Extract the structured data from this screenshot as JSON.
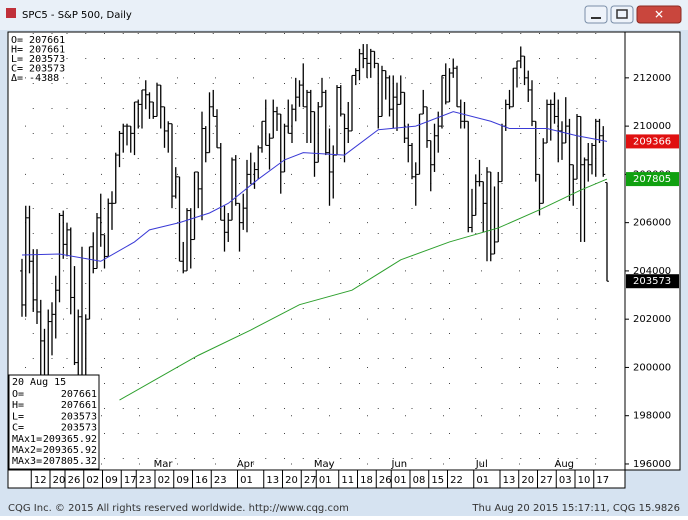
{
  "window": {
    "title": "SPC5 - S&P 500, Daily"
  },
  "footer": {
    "left": "CQG Inc. © 2015 All rights reserved worldwide. http://www.cqg.com",
    "right": "Thu Aug 20 2015 15:17:11, CQG 15.9826"
  },
  "ohlc_header": [
    "O= 207661",
    "H= 207661",
    "L= 203573",
    "C= 203573",
    "Δ=   -4388"
  ],
  "data_window": {
    "date": "20 Aug 15",
    "rows": [
      [
        "O=",
        "207661"
      ],
      [
        "H=",
        "207661"
      ],
      [
        "L=",
        "203573"
      ],
      [
        "C=",
        "203573"
      ],
      [
        "MAx1=",
        "209365.92"
      ],
      [
        "MAx2=",
        "209365.92"
      ],
      [
        "MAx3=",
        "207805.32"
      ]
    ]
  },
  "chart_data": {
    "type": "ohlc",
    "bar_color": "#000000",
    "grid": true,
    "ylim": [
      195750,
      213900
    ],
    "yticks": [
      196000,
      198000,
      200000,
      202000,
      204000,
      206000,
      208000,
      210000,
      212000
    ],
    "xlim": [
      0,
      156
    ],
    "xticks": [
      {
        "value": 3,
        "label": "12"
      },
      {
        "value": 8,
        "label": "20"
      },
      {
        "value": 12,
        "label": "26"
      },
      {
        "value": 17,
        "label": "02"
      },
      {
        "value": 22,
        "label": "09"
      },
      {
        "value": 27,
        "label": "17"
      },
      {
        "value": 31,
        "label": "23"
      },
      {
        "value": 36,
        "label": "02"
      },
      {
        "value": 41,
        "label": "09"
      },
      {
        "value": 46,
        "label": "16"
      },
      {
        "value": 51,
        "label": "23"
      },
      {
        "value": 58,
        "label": "01"
      },
      {
        "value": 65,
        "label": "13"
      },
      {
        "value": 70,
        "label": "20"
      },
      {
        "value": 75,
        "label": "27"
      },
      {
        "value": 79,
        "label": "01"
      },
      {
        "value": 85,
        "label": "11"
      },
      {
        "value": 90,
        "label": "18"
      },
      {
        "value": 95,
        "label": "26"
      },
      {
        "value": 99,
        "label": "01"
      },
      {
        "value": 104,
        "label": "08"
      },
      {
        "value": 109,
        "label": "15"
      },
      {
        "value": 114,
        "label": "22"
      },
      {
        "value": 121,
        "label": "01"
      },
      {
        "value": 128,
        "label": "13"
      },
      {
        "value": 133,
        "label": "20"
      },
      {
        "value": 138,
        "label": "27"
      },
      {
        "value": 143,
        "label": "03"
      },
      {
        "value": 148,
        "label": "10"
      },
      {
        "value": 153,
        "label": "17"
      }
    ],
    "month_labels": [
      {
        "value": 36,
        "label": "Mar"
      },
      {
        "value": 58,
        "label": "Apr"
      },
      {
        "value": 79,
        "label": "May"
      },
      {
        "value": 99,
        "label": "Jun"
      },
      {
        "value": 121,
        "label": "Jul"
      },
      {
        "value": 143,
        "label": "Aug"
      }
    ],
    "bars": [
      [
        204000,
        204500,
        202100,
        202590
      ],
      [
        202590,
        206700,
        202100,
        206200
      ],
      [
        206200,
        206700,
        203900,
        204400
      ],
      [
        204400,
        204900,
        202300,
        202800
      ],
      [
        202800,
        204900,
        201800,
        202300
      ],
      [
        202300,
        202800,
        199200,
        201100
      ],
      [
        201100,
        201600,
        198800,
        199200
      ],
      [
        199200,
        202400,
        198800,
        201900
      ],
      [
        201900,
        202700,
        200500,
        202200
      ],
      [
        202200,
        203800,
        201200,
        203200
      ],
      [
        203200,
        206400,
        202700,
        206300
      ],
      [
        206300,
        206500,
        204500,
        205100
      ],
      [
        205100,
        206000,
        204600,
        205700
      ],
      [
        205700,
        205800,
        202200,
        202900
      ],
      [
        202900,
        204200,
        200100,
        200200
      ],
      [
        200200,
        202400,
        199500,
        202100
      ],
      [
        202100,
        205000,
        199400,
        199500
      ],
      [
        199500,
        202200,
        198100,
        202000
      ],
      [
        202000,
        205000,
        202000,
        205000
      ],
      [
        205000,
        205600,
        203900,
        204100
      ],
      [
        204100,
        206400,
        204100,
        206200
      ],
      [
        206200,
        207200,
        205000,
        205500
      ],
      [
        205500,
        205500,
        204100,
        204600
      ],
      [
        204600,
        207000,
        204600,
        206800
      ],
      [
        206800,
        207300,
        205700,
        206800
      ],
      [
        206800,
        208900,
        206800,
        208800
      ],
      [
        208800,
        209800,
        208300,
        209700
      ],
      [
        209700,
        210100,
        208900,
        210000
      ],
      [
        210000,
        210100,
        209200,
        210000
      ],
      [
        210000,
        210000,
        208900,
        209700
      ],
      [
        209700,
        211000,
        208800,
        211000
      ],
      [
        211000,
        211100,
        209900,
        210900
      ],
      [
        210900,
        211500,
        209900,
        211500
      ],
      [
        211500,
        211900,
        210700,
        211300
      ],
      [
        211300,
        211400,
        210300,
        211000
      ],
      [
        211000,
        211000,
        210300,
        210400
      ],
      [
        210400,
        211800,
        210400,
        211700
      ],
      [
        211700,
        211700,
        209900,
        210800
      ],
      [
        210800,
        210800,
        209100,
        209800
      ],
      [
        209800,
        210200,
        208900,
        210100
      ],
      [
        210100,
        210100,
        206600,
        207100
      ],
      [
        207100,
        208300,
        207000,
        207900
      ],
      [
        207900,
        207900,
        204400,
        204400
      ],
      [
        204400,
        205200,
        203900,
        204000
      ],
      [
        204000,
        206600,
        204000,
        206500
      ],
      [
        206500,
        206600,
        204100,
        205300
      ],
      [
        205300,
        208100,
        205300,
        208100
      ],
      [
        208100,
        208100,
        206600,
        207400
      ],
      [
        207400,
        210600,
        206100,
        209900
      ],
      [
        209900,
        210000,
        208500,
        208900
      ],
      [
        208900,
        211400,
        208900,
        210800
      ],
      [
        210800,
        211500,
        210400,
        210400
      ],
      [
        210400,
        210700,
        209100,
        209100
      ],
      [
        209100,
        209300,
        206100,
        206100
      ],
      [
        206100,
        206700,
        204800,
        205600
      ],
      [
        205600,
        206400,
        205200,
        206100
      ],
      [
        206100,
        208700,
        206100,
        208600
      ],
      [
        208600,
        208800,
        206700,
        206800
      ],
      [
        206800,
        206800,
        204800,
        206000
      ],
      [
        206000,
        207200,
        205700,
        206600
      ],
      [
        206600,
        208600,
        205600,
        208000
      ],
      [
        208000,
        208900,
        207600,
        207600
      ],
      [
        207600,
        208500,
        207400,
        208200
      ],
      [
        208200,
        209200,
        207800,
        209100
      ],
      [
        209100,
        210200,
        208900,
        210200
      ],
      [
        210200,
        211100,
        209200,
        209200
      ],
      [
        209200,
        209700,
        208200,
        209500
      ],
      [
        209500,
        211100,
        209500,
        210600
      ],
      [
        210600,
        210800,
        209800,
        210500
      ],
      [
        210500,
        210500,
        207200,
        208100
      ],
      [
        208100,
        210100,
        208100,
        210000
      ],
      [
        210000,
        211100,
        209700,
        209700
      ],
      [
        209700,
        210900,
        209300,
        210700
      ],
      [
        210700,
        212000,
        210200,
        211200
      ],
      [
        211200,
        211900,
        210800,
        211700
      ],
      [
        211700,
        212600,
        210800,
        210800
      ],
      [
        210800,
        211500,
        209300,
        211400
      ],
      [
        211400,
        211500,
        209300,
        210600
      ],
      [
        210600,
        210600,
        207900,
        208500
      ],
      [
        208500,
        211000,
        208500,
        210800
      ],
      [
        210800,
        212000,
        210800,
        211400
      ],
      [
        211400,
        211500,
        208800,
        208900
      ],
      [
        208900,
        209900,
        206700,
        208100
      ],
      [
        208100,
        209200,
        207000,
        208800
      ],
      [
        208800,
        211700,
        208800,
        211600
      ],
      [
        211600,
        211700,
        210400,
        210500
      ],
      [
        210500,
        210500,
        208500,
        209900
      ],
      [
        209900,
        211000,
        209300,
        209800
      ],
      [
        209800,
        212100,
        209800,
        212100
      ],
      [
        212100,
        212400,
        211700,
        212300
      ],
      [
        212300,
        213200,
        211900,
        213000
      ],
      [
        213000,
        213400,
        212400,
        212800
      ],
      [
        212800,
        213400,
        212000,
        212600
      ],
      [
        212600,
        213200,
        212000,
        213100
      ],
      [
        213100,
        213100,
        212400,
        212600
      ],
      [
        212600,
        212600,
        209900,
        210400
      ],
      [
        210400,
        212500,
        210400,
        212300
      ],
      [
        212300,
        212300,
        211100,
        212000
      ],
      [
        212000,
        212100,
        210400,
        210700
      ],
      [
        210700,
        212100,
        209900,
        211200
      ],
      [
        211200,
        211800,
        209800,
        210900
      ],
      [
        210900,
        212100,
        210900,
        211400
      ],
      [
        211400,
        211400,
        209300,
        209500
      ],
      [
        209500,
        210100,
        208500,
        209200
      ],
      [
        209200,
        209300,
        207800,
        207900
      ],
      [
        207900,
        208500,
        206700,
        208000
      ],
      [
        208000,
        210500,
        208000,
        210500
      ],
      [
        210500,
        211500,
        210500,
        210800
      ],
      [
        210800,
        210800,
        209100,
        209400
      ],
      [
        209400,
        209400,
        207300,
        208400
      ],
      [
        208400,
        210100,
        208100,
        209600
      ],
      [
        209600,
        210600,
        208900,
        210000
      ],
      [
        210000,
        212100,
        209900,
        212100
      ],
      [
        212100,
        212600,
        210900,
        211000
      ],
      [
        211000,
        212400,
        211000,
        212200
      ],
      [
        212200,
        212800,
        212000,
        212400
      ],
      [
        212400,
        212500,
        210800,
        210800
      ],
      [
        210800,
        211100,
        209900,
        210200
      ],
      [
        210200,
        211000,
        209900,
        210200
      ],
      [
        210200,
        210200,
        205600,
        205800
      ],
      [
        205800,
        207400,
        205600,
        206300
      ],
      [
        206300,
        208000,
        206300,
        207700
      ],
      [
        207700,
        208600,
        207500,
        207700
      ],
      [
        207700,
        207700,
        205600,
        206800
      ],
      [
        206800,
        208300,
        204400,
        208100
      ],
      [
        208100,
        208100,
        204400,
        204700
      ],
      [
        204700,
        207500,
        204700,
        205200
      ],
      [
        205200,
        208100,
        205200,
        207700
      ],
      [
        207700,
        210100,
        207700,
        210000
      ],
      [
        210000,
        211100,
        209800,
        210900
      ],
      [
        210900,
        211500,
        210700,
        210800
      ],
      [
        210800,
        212400,
        210800,
        212400
      ],
      [
        212400,
        212700,
        211600,
        212700
      ],
      [
        212700,
        213300,
        212400,
        212900
      ],
      [
        212900,
        212900,
        211700,
        212000
      ],
      [
        212000,
        212300,
        211000,
        211500
      ],
      [
        211500,
        211900,
        210000,
        210200
      ],
      [
        210200,
        210200,
        207700,
        208000
      ],
      [
        208000,
        208000,
        206300,
        206800
      ],
      [
        206800,
        209500,
        206800,
        209300
      ],
      [
        209300,
        211100,
        209300,
        210900
      ],
      [
        210900,
        211100,
        209400,
        210900
      ],
      [
        210900,
        211400,
        210100,
        210400
      ],
      [
        210400,
        211100,
        208500,
        209800
      ],
      [
        209800,
        210200,
        208600,
        209300
      ],
      [
        209300,
        211200,
        209300,
        210000
      ],
      [
        210000,
        210300,
        206900,
        208400
      ],
      [
        208400,
        208400,
        206700,
        207800
      ],
      [
        207800,
        210500,
        207800,
        210400
      ],
      [
        210400,
        210400,
        205200,
        208400
      ],
      [
        208400,
        208700,
        205200,
        208600
      ],
      [
        208600,
        209300,
        207700,
        208400
      ],
      [
        208400,
        209300,
        208000,
        209200
      ],
      [
        209200,
        210300,
        207900,
        210200
      ],
      [
        210200,
        210300,
        209300,
        209600
      ],
      [
        209600,
        210000,
        207900,
        208000
      ],
      [
        207661,
        207661,
        203573,
        203573
      ]
    ],
    "series": [
      {
        "color": "#3a3ad6",
        "x": [
          0,
          10,
          21,
          30,
          34,
          42,
          50,
          55,
          63,
          70,
          75,
          86,
          95,
          105,
          115,
          125,
          130,
          140,
          148,
          156
        ],
        "values": [
          204660,
          204700,
          204400,
          205200,
          205700,
          206000,
          206400,
          206800,
          207800,
          208600,
          208900,
          208800,
          209850,
          210000,
          210600,
          210200,
          209900,
          209900,
          209600,
          209366
        ]
      },
      {
        "color": "#2ea02e",
        "x": [
          26,
          47,
          61,
          74,
          88,
          101,
          114,
          127,
          138,
          149,
          156
        ],
        "values": [
          198650,
          200500,
          201550,
          202600,
          203200,
          204460,
          205200,
          205780,
          206530,
          207350,
          207805
        ]
      }
    ],
    "price_flags": [
      {
        "value": 209366,
        "color": "#e01010"
      },
      {
        "value": 207805,
        "color": "#10a010"
      },
      {
        "value": 203573,
        "color": "#000000"
      }
    ]
  }
}
